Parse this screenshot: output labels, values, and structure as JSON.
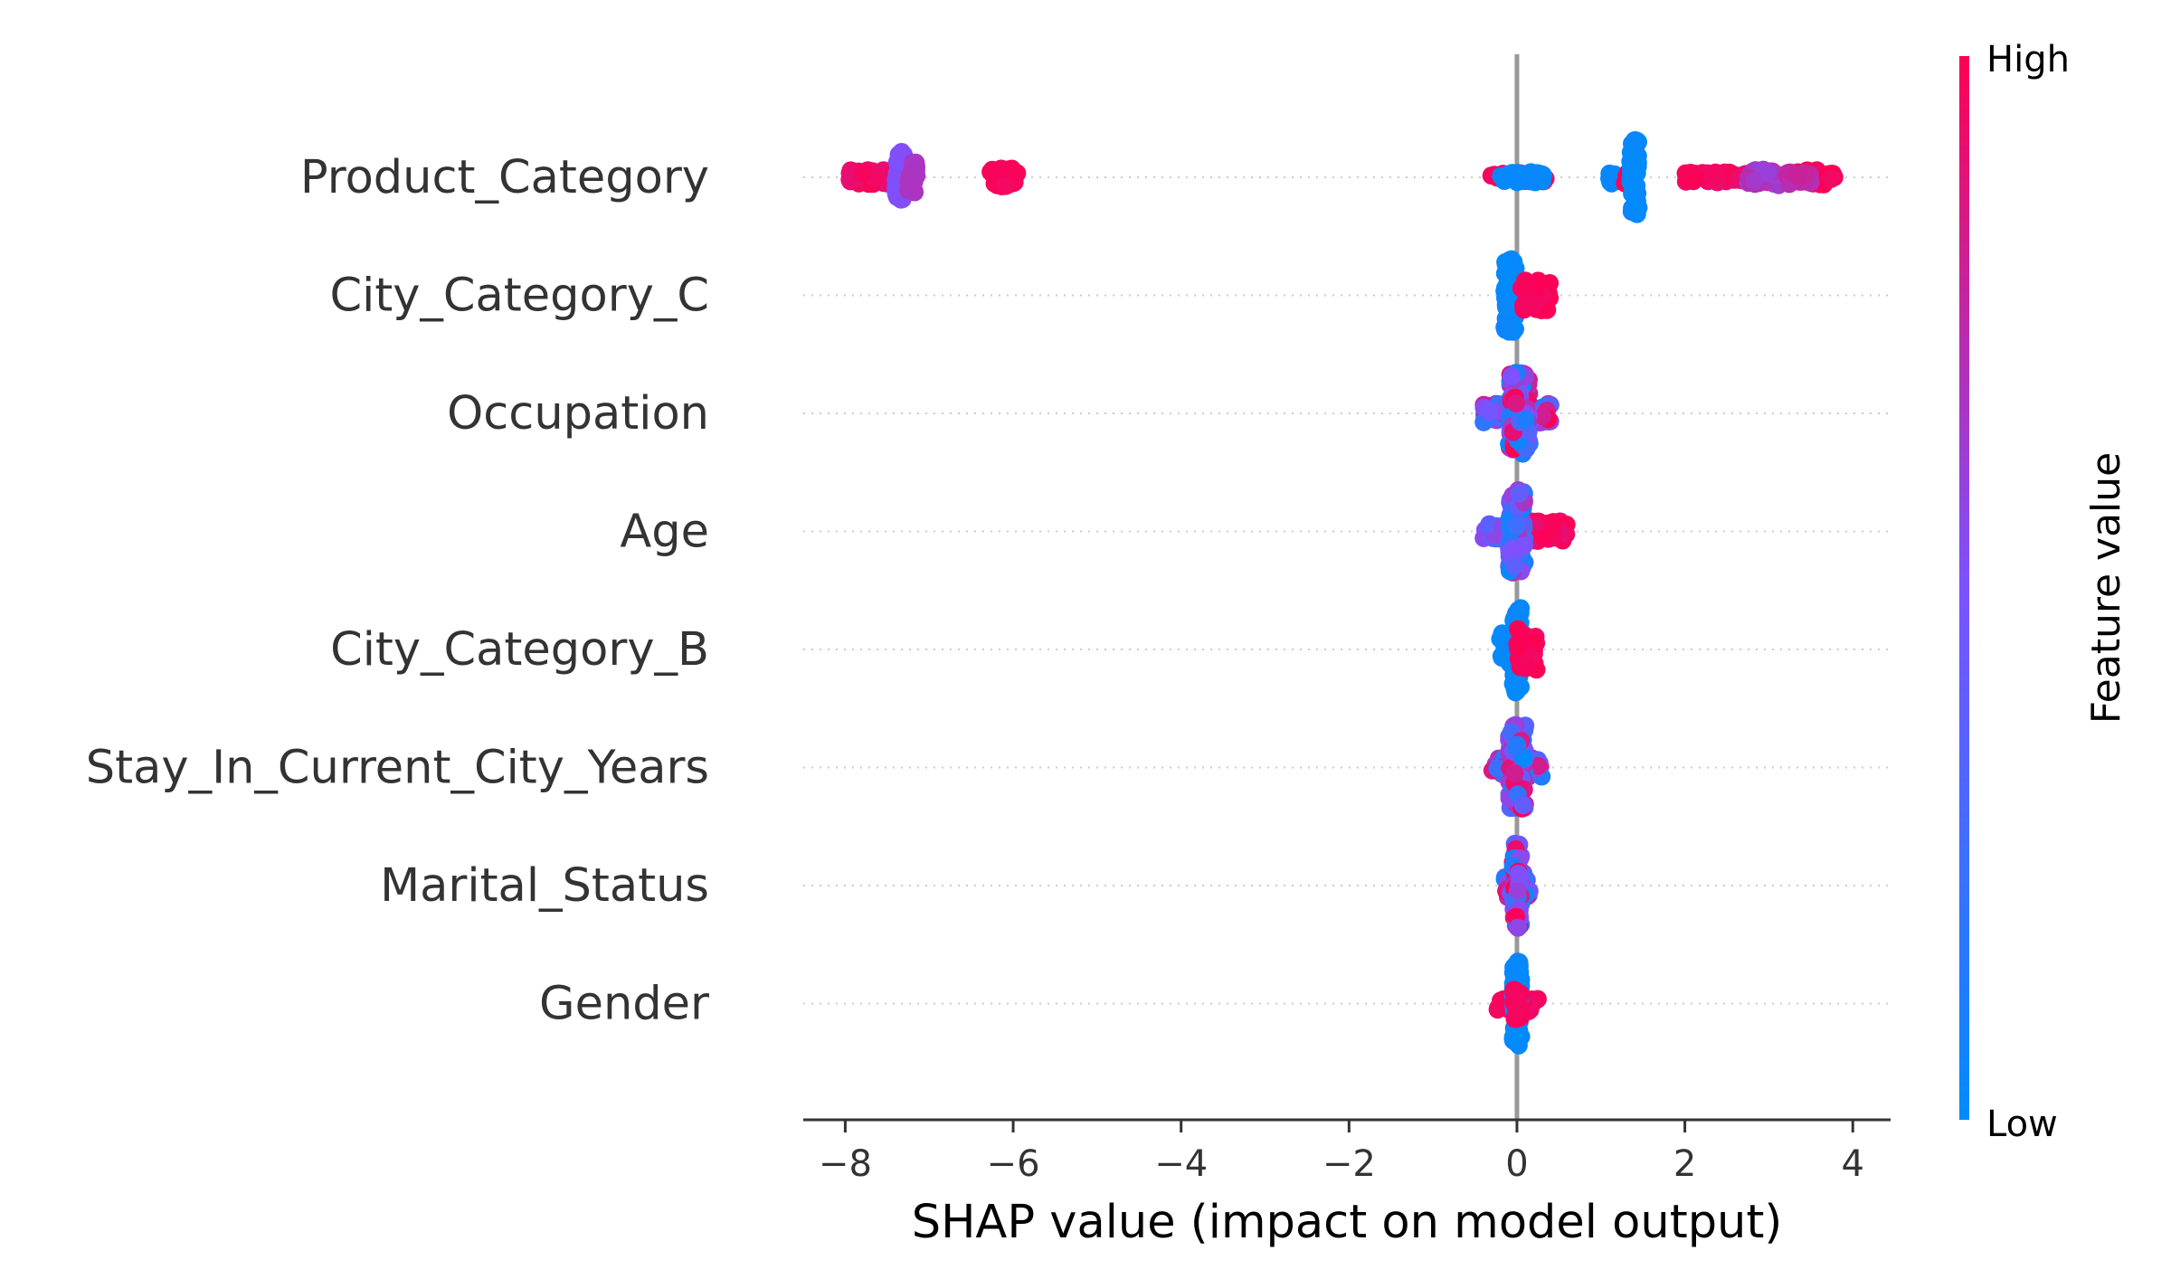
{
  "chart_data": {
    "type": "scatter",
    "subtype": "shap-beeswarm",
    "xlabel": "SHAP value (impact on model output)",
    "xlim": [
      -8.5,
      4.45
    ],
    "xticks": [
      {
        "value": -8,
        "label": "−8"
      },
      {
        "value": -6,
        "label": "−6"
      },
      {
        "value": -4,
        "label": "−4"
      },
      {
        "value": -2,
        "label": "−2"
      },
      {
        "value": 0,
        "label": "0"
      },
      {
        "value": 2,
        "label": "2"
      },
      {
        "value": 4,
        "label": "4"
      }
    ],
    "features": [
      {
        "name": "Product_Category",
        "clusters": [
          {
            "x": [
              -7.95,
              -7.25
            ],
            "spread": 0.14,
            "density": 0.9,
            "n": 70,
            "value": [
              0.9,
              1.0
            ]
          },
          {
            "x": [
              -7.4,
              -7.3
            ],
            "spread": 0.5,
            "density": 1.0,
            "n": 60,
            "value": [
              0.5,
              0.55
            ]
          },
          {
            "x": [
              -7.25,
              -7.15
            ],
            "spread": 0.3,
            "density": 1.0,
            "n": 25,
            "value": [
              0.65,
              0.7
            ]
          },
          {
            "x": [
              -6.3,
              -5.95
            ],
            "spread": 0.18,
            "density": 1.0,
            "n": 30,
            "value": [
              0.95,
              1.0
            ]
          },
          {
            "x": [
              -0.4,
              0.35
            ],
            "spread": 0.08,
            "density": 0.6,
            "n": 30,
            "value": [
              0.9,
              1.0
            ]
          },
          {
            "x": [
              -0.2,
              0.35
            ],
            "spread": 0.1,
            "density": 1.0,
            "n": 35,
            "value": [
              0.0,
              0.05
            ]
          },
          {
            "x": [
              1.1,
              1.2
            ],
            "spread": 0.12,
            "density": 1.0,
            "n": 10,
            "value": [
              0.0,
              0.05
            ]
          },
          {
            "x": [
              1.25,
              1.35
            ],
            "spread": 0.12,
            "density": 1.0,
            "n": 8,
            "value": [
              0.95,
              1.0
            ]
          },
          {
            "x": [
              1.35,
              1.45
            ],
            "spread": 0.75,
            "density": 1.0,
            "n": 60,
            "value": [
              0.0,
              0.05
            ]
          },
          {
            "x": [
              2.0,
              3.0
            ],
            "spread": 0.1,
            "density": 1.0,
            "n": 80,
            "value": [
              0.9,
              1.0
            ]
          },
          {
            "x": [
              2.7,
              3.3
            ],
            "spread": 0.16,
            "density": 1.0,
            "n": 40,
            "value": [
              0.6,
              0.75
            ]
          },
          {
            "x": [
              3.3,
              3.8
            ],
            "spread": 0.14,
            "density": 1.0,
            "n": 30,
            "value": [
              0.95,
              1.0
            ]
          },
          {
            "x": [
              3.2,
              3.5
            ],
            "spread": 0.1,
            "density": 1.0,
            "n": 20,
            "value": [
              0.7,
              0.8
            ]
          }
        ]
      },
      {
        "name": "City_Category_C",
        "clusters": [
          {
            "x": [
              -0.15,
              0.0
            ],
            "spread": 0.72,
            "density": 1.0,
            "n": 90,
            "value": [
              0.0,
              0.05
            ]
          },
          {
            "x": [
              0.05,
              0.4
            ],
            "spread": 0.3,
            "density": 1.0,
            "n": 60,
            "value": [
              0.95,
              1.0
            ]
          }
        ]
      },
      {
        "name": "Occupation",
        "clusters": [
          {
            "x": [
              -0.4,
              0.4
            ],
            "spread": 0.2,
            "density": 0.9,
            "n": 80,
            "value": [
              0.0,
              1.0
            ]
          },
          {
            "x": [
              -0.1,
              0.15
            ],
            "spread": 0.8,
            "density": 1.0,
            "n": 120,
            "value": [
              0.0,
              1.0
            ]
          }
        ]
      },
      {
        "name": "Age",
        "clusters": [
          {
            "x": [
              -0.4,
              0.1
            ],
            "spread": 0.15,
            "density": 0.8,
            "n": 40,
            "value": [
              0.0,
              0.6
            ]
          },
          {
            "x": [
              0.0,
              0.6
            ],
            "spread": 0.2,
            "density": 1.0,
            "n": 60,
            "value": [
              0.9,
              1.0
            ]
          },
          {
            "x": [
              -0.1,
              0.1
            ],
            "spread": 0.85,
            "density": 1.0,
            "n": 100,
            "value": [
              0.0,
              0.7
            ]
          }
        ]
      },
      {
        "name": "City_Category_B",
        "clusters": [
          {
            "x": [
              -0.2,
              0.05
            ],
            "spread": 0.35,
            "density": 1.0,
            "n": 40,
            "value": [
              0.0,
              0.05
            ]
          },
          {
            "x": [
              -0.05,
              0.05
            ],
            "spread": 0.85,
            "density": 1.0,
            "n": 60,
            "value": [
              0.0,
              0.05
            ]
          },
          {
            "x": [
              0.0,
              0.25
            ],
            "spread": 0.4,
            "density": 1.0,
            "n": 50,
            "value": [
              0.95,
              1.0
            ]
          }
        ]
      },
      {
        "name": "Stay_In_Current_City_Years",
        "clusters": [
          {
            "x": [
              -0.3,
              0.3
            ],
            "spread": 0.2,
            "density": 0.9,
            "n": 60,
            "value": [
              0.0,
              1.0
            ]
          },
          {
            "x": [
              -0.1,
              0.1
            ],
            "spread": 0.85,
            "density": 1.0,
            "n": 120,
            "value": [
              0.0,
              1.0
            ]
          }
        ]
      },
      {
        "name": "Marital_Status",
        "clusters": [
          {
            "x": [
              -0.15,
              0.15
            ],
            "spread": 0.25,
            "density": 1.0,
            "n": 40,
            "value": [
              0.0,
              1.0
            ]
          },
          {
            "x": [
              -0.05,
              0.05
            ],
            "spread": 0.85,
            "density": 1.0,
            "n": 80,
            "value": [
              0.0,
              1.0
            ]
          }
        ]
      },
      {
        "name": "Gender",
        "clusters": [
          {
            "x": [
              -0.25,
              0.25
            ],
            "spread": 0.15,
            "density": 1.0,
            "n": 40,
            "value": [
              0.9,
              1.0
            ]
          },
          {
            "x": [
              -0.05,
              0.05
            ],
            "spread": 0.85,
            "density": 1.0,
            "n": 90,
            "value": [
              0.0,
              0.05
            ]
          },
          {
            "x": [
              -0.05,
              0.05
            ],
            "spread": 0.3,
            "density": 1.0,
            "n": 20,
            "value": [
              0.95,
              1.0
            ]
          }
        ]
      }
    ],
    "colorbar": {
      "title": "Feature value",
      "high_label": "High",
      "low_label": "Low",
      "low_color": "#008bfb",
      "mid_color": "#7c52ff",
      "high_color": "#ff0052"
    },
    "zero_line_color": "#999999",
    "grid": "dotted-rows"
  }
}
